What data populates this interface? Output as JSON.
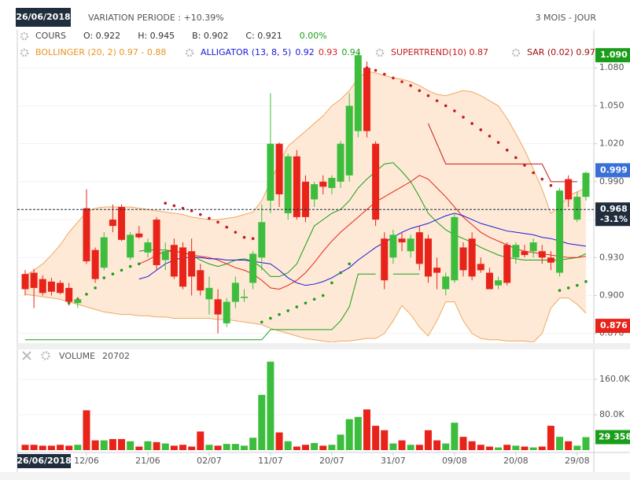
{
  "chart_data": {
    "type": "candlestick",
    "header": {
      "date": "26/06/2018",
      "variation": "VARIATION PERIODE : +10.39%",
      "period": "3 MOIS - JOUR"
    },
    "legend": [
      [
        {
          "items": [
            {
              "text": "COURS",
              "color": "#444444"
            },
            {
              "text": "O: 0.922",
              "color": "#333333"
            },
            {
              "text": "H: 0.945",
              "color": "#333333"
            },
            {
              "text": "B: 0.902",
              "color": "#333333"
            },
            {
              "text": "C: 0.921",
              "color": "#333333"
            },
            {
              "text": "0.00%",
              "color": "#1a9e1a"
            }
          ]
        }
      ],
      [
        {
          "items": [
            {
              "text": "BOLLINGER (20, 2) 0.97 - 0.88",
              "color": "#e8941f"
            }
          ]
        },
        {
          "items": [
            {
              "text": "ALLIGATOR (13, 8, 5)",
              "color": "#1a1ad6"
            },
            {
              "text": "0.92",
              "color": "#1a1ad6"
            },
            {
              "text": "0.93",
              "color": "#d62020"
            },
            {
              "text": "0.94",
              "color": "#1a9e1a"
            }
          ]
        },
        {
          "items": [
            {
              "text": "SUPERTREND(10) 0.87",
              "color": "#c41a1a"
            }
          ]
        },
        {
          "items": [
            {
              "text": "SAR (0.02) 0.97",
              "color": "#a01010"
            }
          ]
        }
      ]
    ],
    "categories": [
      null,
      null,
      null,
      null,
      null,
      null,
      null,
      "12/06",
      null,
      null,
      null,
      null,
      null,
      null,
      "21/06",
      null,
      null,
      null,
      null,
      null,
      null,
      "02/07",
      null,
      null,
      null,
      null,
      null,
      null,
      "11/07",
      null,
      null,
      null,
      null,
      null,
      null,
      "20/07",
      null,
      null,
      null,
      null,
      null,
      null,
      "31/07",
      null,
      null,
      null,
      null,
      null,
      null,
      "09/08",
      null,
      null,
      null,
      null,
      null,
      null,
      "20/08",
      null,
      null,
      null,
      null,
      null,
      null,
      "29/08",
      null
    ],
    "open": [
      0.917,
      0.918,
      0.913,
      0.911,
      0.91,
      0.906,
      0.894,
      0.969,
      0.936,
      0.922,
      0.96,
      0.97,
      0.93,
      0.949,
      0.934,
      0.96,
      0.928,
      0.94,
      0.938,
      0.935,
      0.92,
      0.897,
      0.897,
      0.878,
      0.895,
      0.898,
      0.91,
      0.93,
      0.975,
      1.02,
      0.965,
      1.01,
      0.99,
      0.976,
      0.99,
      0.985,
      0.99,
      0.995,
      1.03,
      1.08,
      1.02,
      0.945,
      0.93,
      0.945,
      0.935,
      0.95,
      0.945,
      0.922,
      0.905,
      0.912,
      0.938,
      0.945,
      0.925,
      0.918,
      0.908,
      0.94,
      0.93,
      0.935,
      0.935,
      0.935,
      0.93,
      0.918,
      0.992,
      0.96,
      0.978
    ],
    "high": [
      0.92,
      0.921,
      0.916,
      0.914,
      0.912,
      0.91,
      0.899,
      0.984,
      0.938,
      0.95,
      0.972,
      0.972,
      0.95,
      0.955,
      0.945,
      0.962,
      0.942,
      0.945,
      0.942,
      0.945,
      0.925,
      0.915,
      0.905,
      0.898,
      0.915,
      0.905,
      0.935,
      0.972,
      1.06,
      1.021,
      1.012,
      1.015,
      0.995,
      0.99,
      0.995,
      0.995,
      1.022,
      1.06,
      1.092,
      1.085,
      1.022,
      0.95,
      0.952,
      0.95,
      0.948,
      0.955,
      0.948,
      0.93,
      0.918,
      0.965,
      0.942,
      0.95,
      0.93,
      0.922,
      0.915,
      0.942,
      0.942,
      0.94,
      0.945,
      0.94,
      0.935,
      0.985,
      0.995,
      0.982,
      0.998
    ],
    "low": [
      0.9,
      0.89,
      0.9,
      0.9,
      0.901,
      0.892,
      0.89,
      0.925,
      0.91,
      0.92,
      0.95,
      0.943,
      0.928,
      0.945,
      0.93,
      0.92,
      0.92,
      0.913,
      0.905,
      0.9,
      0.9,
      0.885,
      0.87,
      0.875,
      0.89,
      0.895,
      0.905,
      0.92,
      0.965,
      0.97,
      0.96,
      0.96,
      0.958,
      0.97,
      0.98,
      0.98,
      0.985,
      0.99,
      1.025,
      1.025,
      0.955,
      0.905,
      0.925,
      0.935,
      0.93,
      0.92,
      0.91,
      0.905,
      0.9,
      0.91,
      0.915,
      0.912,
      0.918,
      0.905,
      0.905,
      0.908,
      0.925,
      0.93,
      0.93,
      0.925,
      0.92,
      0.915,
      0.97,
      0.958,
      0.975
    ],
    "close": [
      0.905,
      0.906,
      0.902,
      0.903,
      0.902,
      0.895,
      0.897,
      0.927,
      0.913,
      0.946,
      0.955,
      0.944,
      0.948,
      0.946,
      0.942,
      0.924,
      0.935,
      0.915,
      0.907,
      0.915,
      0.904,
      0.906,
      0.885,
      0.895,
      0.91,
      0.899,
      0.933,
      0.958,
      1.02,
      0.98,
      1.01,
      0.962,
      0.962,
      0.988,
      0.986,
      0.993,
      1.02,
      1.05,
      1.09,
      1.03,
      0.96,
      0.912,
      0.948,
      0.942,
      0.945,
      0.925,
      0.915,
      0.918,
      0.915,
      0.962,
      0.92,
      0.915,
      0.92,
      0.905,
      0.912,
      0.91,
      0.94,
      0.932,
      0.942,
      0.93,
      0.926,
      0.983,
      0.976,
      0.978,
      0.997
    ],
    "up_color": "#3dbd3d",
    "down_color": "#e8231a",
    "ylim": [
      0.863,
      1.11
    ],
    "yticks": [
      {
        "value": 0.87,
        "label": "0.870"
      },
      {
        "value": 0.9,
        "label": "0.900"
      },
      {
        "value": 0.93,
        "label": "0.930"
      },
      {
        "value": 0.96,
        "label": "0.960"
      },
      {
        "value": 0.99,
        "label": "0.990"
      },
      {
        "value": 1.02,
        "label": "1.020"
      },
      {
        "value": 1.05,
        "label": "1.050"
      },
      {
        "value": 1.08,
        "label": "1.080"
      }
    ],
    "grid": true,
    "bollinger": {
      "color": "#f0a860",
      "fill": "#fde9d6",
      "upper": [
        0.916,
        0.92,
        0.925,
        0.932,
        0.94,
        0.95,
        0.958,
        0.966,
        0.969,
        0.97,
        0.97,
        0.97,
        0.97,
        0.969,
        0.968,
        0.967,
        0.966,
        0.965,
        0.964,
        0.962,
        0.961,
        0.96,
        0.96,
        0.961,
        0.962,
        0.964,
        0.966,
        0.975,
        0.99,
        1.005,
        1.018,
        1.024,
        1.03,
        1.036,
        1.042,
        1.05,
        1.055,
        1.062,
        1.072,
        1.077,
        1.076,
        1.074,
        1.072,
        1.071,
        1.069,
        1.066,
        1.062,
        1.059,
        1.058,
        1.06,
        1.062,
        1.061,
        1.058,
        1.054,
        1.05,
        1.04,
        1.028,
        1.015,
        1.0,
        0.984,
        0.965,
        0.97,
        0.979,
        0.982,
        0.985
      ],
      "lower": [
        0.901,
        0.9,
        0.899,
        0.898,
        0.897,
        0.895,
        0.893,
        0.891,
        0.889,
        0.887,
        0.886,
        0.885,
        0.885,
        0.884,
        0.884,
        0.883,
        0.883,
        0.882,
        0.882,
        0.882,
        0.882,
        0.882,
        0.881,
        0.881,
        0.88,
        0.879,
        0.878,
        0.877,
        0.874,
        0.872,
        0.87,
        0.868,
        0.866,
        0.865,
        0.864,
        0.863,
        0.864,
        0.864,
        0.865,
        0.866,
        0.866,
        0.87,
        0.88,
        0.892,
        0.885,
        0.875,
        0.868,
        0.88,
        0.895,
        0.895,
        0.88,
        0.87,
        0.866,
        0.865,
        0.865,
        0.864,
        0.864,
        0.864,
        0.863,
        0.87,
        0.89,
        0.898,
        0.898,
        0.893,
        0.886
      ]
    },
    "alligator": [
      {
        "color": "#1a9e1a",
        "values": [
          null,
          null,
          null,
          null,
          null,
          null,
          null,
          null,
          null,
          null,
          null,
          null,
          null,
          0.935,
          0.936,
          0.936,
          0.936,
          0.935,
          0.934,
          0.932,
          0.928,
          0.925,
          0.923,
          0.925,
          0.928,
          0.929,
          0.927,
          0.922,
          0.915,
          0.915,
          0.918,
          0.925,
          0.94,
          0.955,
          0.96,
          0.965,
          0.968,
          0.975,
          0.985,
          0.992,
          0.998,
          1.004,
          1.005,
          0.998,
          0.99,
          0.978,
          0.965,
          0.958,
          0.952,
          0.948,
          0.945,
          0.942,
          0.938,
          0.935,
          0.932,
          0.93,
          0.929,
          0.928,
          0.928,
          0.928,
          0.928,
          0.928,
          0.929,
          0.93,
          0.933
        ]
      },
      {
        "color": "#e8231a",
        "values": [
          null,
          null,
          null,
          null,
          null,
          null,
          null,
          null,
          null,
          null,
          null,
          null,
          null,
          0.925,
          0.928,
          0.932,
          0.935,
          0.935,
          0.934,
          0.932,
          0.931,
          0.93,
          0.928,
          0.925,
          0.922,
          0.92,
          0.917,
          0.912,
          0.906,
          0.905,
          0.908,
          0.912,
          0.918,
          0.926,
          0.935,
          0.943,
          0.95,
          0.956,
          0.962,
          0.968,
          0.974,
          0.978,
          0.982,
          0.986,
          0.99,
          0.995,
          0.992,
          0.985,
          0.978,
          0.97,
          0.962,
          0.956,
          0.95,
          0.946,
          0.943,
          0.94,
          0.937,
          0.935,
          0.934,
          0.933,
          0.932,
          0.931,
          0.93,
          0.93,
          0.931
        ]
      },
      {
        "color": "#1a1ad6",
        "values": [
          null,
          null,
          null,
          null,
          null,
          null,
          null,
          null,
          null,
          null,
          null,
          null,
          null,
          0.913,
          0.915,
          0.92,
          0.925,
          0.928,
          0.93,
          0.93,
          0.93,
          0.929,
          0.929,
          0.928,
          0.928,
          0.928,
          0.927,
          0.926,
          0.925,
          0.92,
          0.914,
          0.91,
          0.908,
          0.909,
          0.911,
          0.914,
          0.918,
          0.922,
          0.928,
          0.933,
          0.938,
          0.942,
          0.946,
          0.95,
          0.953,
          0.955,
          0.957,
          0.96,
          0.963,
          0.965,
          0.963,
          0.96,
          0.957,
          0.955,
          0.953,
          0.951,
          0.95,
          0.949,
          0.948,
          0.946,
          0.945,
          0.943,
          0.941,
          0.94,
          0.939
        ]
      }
    ],
    "supertrend": {
      "up_color": "#1a9e1a",
      "down_color": "#c41a1a",
      "values": [
        0.865,
        0.865,
        0.865,
        0.865,
        0.865,
        0.865,
        0.865,
        0.865,
        0.865,
        0.865,
        0.865,
        0.865,
        0.865,
        0.865,
        0.865,
        0.865,
        0.865,
        0.865,
        0.865,
        0.865,
        0.865,
        0.865,
        0.865,
        0.865,
        0.865,
        0.865,
        0.865,
        0.865,
        0.873,
        0.873,
        0.873,
        0.873,
        0.873,
        0.873,
        0.873,
        0.873,
        0.88,
        0.891,
        0.917,
        0.917,
        0.917,
        0.917,
        0.917,
        0.917,
        0.917,
        0.917,
        1.036,
        1.02,
        1.004,
        1.004,
        1.004,
        1.004,
        1.004,
        1.004,
        1.004,
        1.004,
        1.004,
        1.004,
        1.004,
        1.004,
        0.99,
        0.99,
        0.99,
        0.99,
        0.985
      ]
    },
    "sar": {
      "up_color": "#1a9e1a",
      "down_color": "#c41a1a",
      "values": [
        null,
        null,
        null,
        null,
        null,
        0.894,
        0.897,
        0.901,
        0.906,
        0.914,
        0.917,
        0.92,
        0.923,
        0.925,
        null,
        null,
        0.973,
        0.971,
        0.969,
        0.967,
        0.964,
        0.961,
        0.958,
        0.954,
        0.95,
        0.946,
        0.945,
        0.879,
        0.882,
        0.885,
        0.888,
        0.891,
        0.894,
        0.897,
        0.9,
        0.91,
        0.918,
        0.925,
        null,
        1.08,
        1.078,
        1.075,
        1.072,
        1.069,
        1.066,
        1.062,
        1.058,
        1.054,
        1.05,
        1.046,
        1.041,
        1.036,
        1.031,
        1.026,
        1.021,
        1.015,
        1.009,
        1.003,
        0.997,
        0.992,
        0.987,
        0.904,
        0.906,
        0.908,
        0.911
      ]
    },
    "markers": [
      {
        "value": 1.09,
        "label": "1.090",
        "color": "#1a9e1a"
      },
      {
        "value": 0.999,
        "label": "0.999",
        "color": "#3a6fd8"
      },
      {
        "value": 0.876,
        "label": "0.876",
        "color": "#e8231a"
      }
    ],
    "reference": {
      "value": 0.968,
      "label": "0.968",
      "change": "-3.1%",
      "color": "#1f2d3d"
    },
    "volume": {
      "title": "VOLUME",
      "value_text": "20702",
      "values": [
        12000,
        12000,
        10000,
        10000,
        12000,
        10000,
        12000,
        90000,
        22000,
        22000,
        25000,
        25000,
        20000,
        8000,
        20000,
        18000,
        15000,
        10000,
        12000,
        8000,
        42000,
        12000,
        10000,
        14000,
        14000,
        10000,
        28000,
        125000,
        200000,
        40000,
        20000,
        8000,
        12000,
        16000,
        10000,
        12000,
        35000,
        70000,
        75000,
        92000,
        55000,
        45000,
        15000,
        22000,
        12000,
        12000,
        45000,
        22000,
        15000,
        62000,
        30000,
        20000,
        12000,
        8000,
        6000,
        12000,
        10000,
        8000,
        6000,
        8000,
        55000,
        30000,
        20000,
        10000,
        29358
      ],
      "ylim": [
        0,
        226000
      ],
      "yticks": [
        {
          "value": 80000,
          "label": "80.0K"
        },
        {
          "value": 160000,
          "label": "160.0K"
        }
      ],
      "marker": {
        "value": 29358,
        "label": "29 358",
        "color": "#1a9e1a"
      }
    },
    "footer_date": "26/06/2018"
  }
}
